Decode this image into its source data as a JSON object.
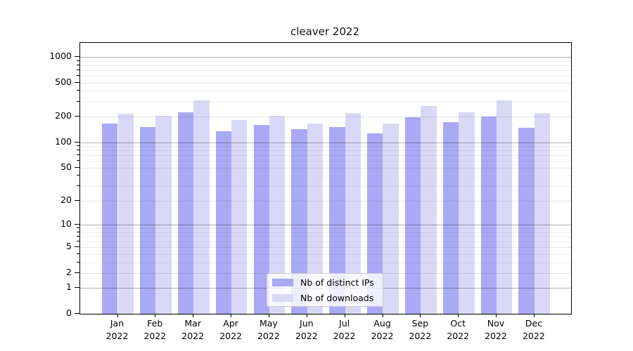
{
  "title": "cleaver 2022",
  "chart_data": {
    "type": "bar",
    "title": "cleaver 2022",
    "categories": [
      "Jan 2022",
      "Feb 2022",
      "Mar 2022",
      "Apr 2022",
      "May 2022",
      "Jun 2022",
      "Jul 2022",
      "Aug 2022",
      "Sep 2022",
      "Oct 2022",
      "Nov 2022",
      "Dec 2022"
    ],
    "x_tick_line1": [
      "Jan",
      "Feb",
      "Mar",
      "Apr",
      "May",
      "Jun",
      "Jul",
      "Aug",
      "Sep",
      "Oct",
      "Nov",
      "Dec"
    ],
    "x_tick_line2": "2022",
    "series": [
      {
        "name": "Nb of distinct IPs",
        "color": "#a9a9f5",
        "values": [
          165,
          152,
          226,
          134,
          160,
          141,
          150,
          126,
          195,
          171,
          202,
          148
        ]
      },
      {
        "name": "Nb of downloads",
        "color": "#d9d9f7",
        "values": [
          216,
          205,
          310,
          181,
          203,
          165,
          220,
          165,
          266,
          225,
          308,
          221
        ]
      }
    ],
    "yscale": "log1p",
    "ylim": [
      0,
      1430
    ],
    "yticks_labeled": [
      1000,
      500,
      200,
      100,
      50,
      20,
      10,
      5,
      2,
      1,
      0
    ],
    "yticks_major": [
      1000,
      100,
      10,
      1
    ],
    "yticks_minor_unlabeled": [
      3,
      4,
      6,
      7,
      8,
      9,
      30,
      40,
      60,
      70,
      80,
      90,
      300,
      400,
      600,
      700,
      800,
      900
    ],
    "grid": "both",
    "legend_position": "lower center",
    "xlabel": "",
    "ylabel": ""
  },
  "legend": {
    "items": [
      {
        "label": "Nb of distinct IPs",
        "color": "#a9a9f5"
      },
      {
        "label": "Nb of downloads",
        "color": "#d9d9f7"
      }
    ]
  },
  "colors": {
    "background": "#ffffff",
    "axis": "#000000",
    "grid_major": "rgba(0,0,0,0.30)",
    "grid_minor_labeled": "rgba(0,0,0,0.10)",
    "grid_minor": "rgba(0,0,0,0.06)",
    "bar_distinct_ips": "#a9a9f5",
    "bar_downloads": "#d9d9f7"
  }
}
